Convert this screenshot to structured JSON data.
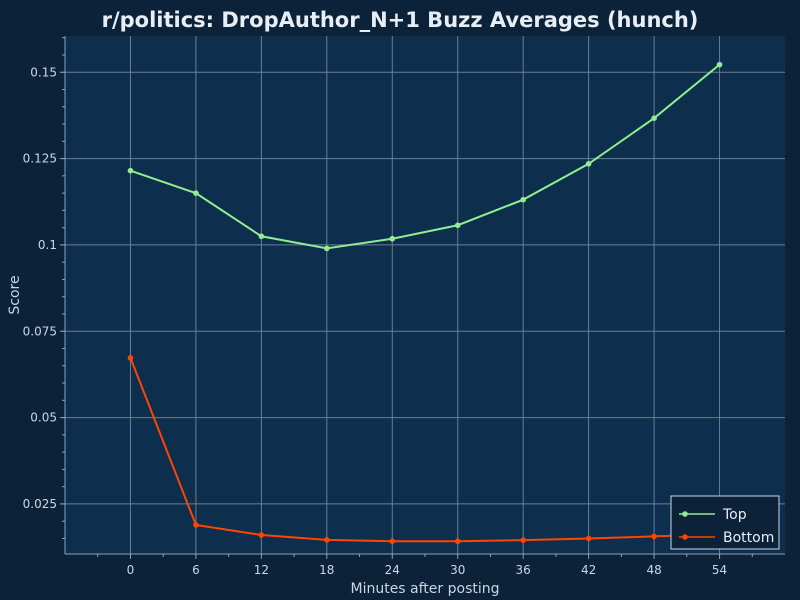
{
  "chart_data": {
    "type": "line",
    "title": "r/politics: DropAuthor_N+1 Buzz Averages (hunch)",
    "xlabel": "Minutes after posting",
    "ylabel": "Score",
    "x": [
      0,
      6,
      12,
      18,
      24,
      30,
      36,
      42,
      48,
      54
    ],
    "xticks": [
      "0",
      "6",
      "12",
      "18",
      "24",
      "30",
      "36",
      "42",
      "48",
      "54"
    ],
    "yticks": [
      "0.025",
      "0.05",
      "0.075",
      "0.1",
      "0.125",
      "0.15"
    ],
    "ytick_values": [
      0.025,
      0.05,
      0.075,
      0.1,
      0.125,
      0.15
    ],
    "xlim": [
      -6,
      60
    ],
    "ylim": [
      0.0105,
      0.1605
    ],
    "grid": true,
    "legend_position": "bottom-right",
    "series": [
      {
        "name": "Top",
        "color": "#90ee90",
        "values": [
          0.1215,
          0.115,
          0.1025,
          0.099,
          0.1018,
          0.1057,
          0.1131,
          0.1235,
          0.1367,
          0.1522
        ]
      },
      {
        "name": "Bottom",
        "color": "#ff4500",
        "values": [
          0.0673,
          0.0189,
          0.016,
          0.0146,
          0.0142,
          0.0142,
          0.0145,
          0.015,
          0.0156,
          0.0163
        ]
      }
    ]
  },
  "colors": {
    "background": "#0b2239",
    "plot_background": "#0d2e4c",
    "grid": "#6b7f92",
    "axis": "#8fa3b8"
  }
}
